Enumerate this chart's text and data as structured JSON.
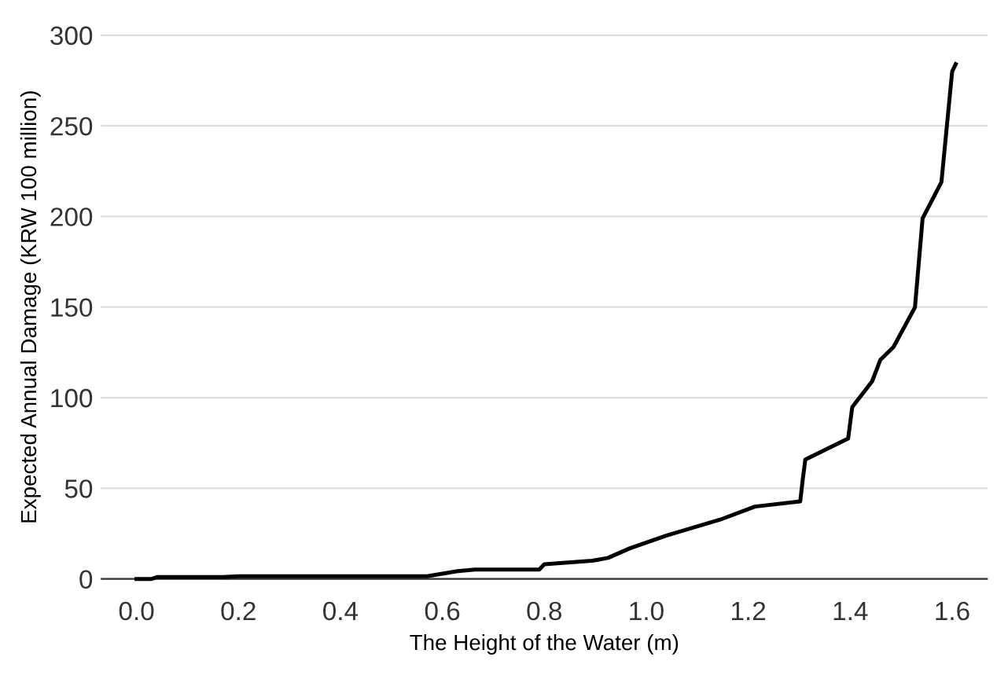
{
  "chart_data": {
    "type": "line",
    "xlabel": "The Height of the Water (m)",
    "ylabel": "Expected Annual Damage (KRW 100 million)",
    "series": [
      {
        "color": "#000000",
        "x": [
          0.0,
          0.03,
          0.04,
          0.17,
          0.2,
          0.57,
          0.6,
          0.63,
          0.664,
          0.79,
          0.8,
          0.831,
          0.894,
          0.925,
          0.967,
          1.04,
          1.145,
          1.213,
          1.302,
          1.307,
          1.312,
          1.396,
          1.404,
          1.443,
          1.459,
          1.485,
          1.527,
          1.542,
          1.579,
          1.6,
          1.607
        ],
        "values": [
          0,
          0,
          1,
          1,
          1.5,
          1.5,
          2.9,
          4.3,
          5.2,
          5.2,
          8.1,
          8.7,
          10,
          11.6,
          16.8,
          24,
          32.7,
          39.9,
          42.8,
          55,
          65.9,
          77.5,
          94.8,
          109,
          120.8,
          128,
          149.8,
          198.9,
          219,
          280,
          284
        ]
      }
    ],
    "ylim": [
      0,
      300
    ],
    "yticks": [
      0,
      50,
      100,
      150,
      200,
      250,
      300
    ],
    "xlim": [
      -0.07,
      1.67
    ],
    "xticks": [
      {
        "value": 0,
        "label": "0.0"
      },
      {
        "value": 0.2,
        "label": "0.2"
      },
      {
        "value": 0.4,
        "label": "0.4"
      },
      {
        "value": 0.6,
        "label": "0.6"
      },
      {
        "value": 0.8,
        "label": "0.8"
      },
      {
        "value": 1,
        "label": "1.0"
      },
      {
        "value": 1.2,
        "label": "1.2"
      },
      {
        "value": 1.4,
        "label": "1.4"
      },
      {
        "value": 1.6,
        "label": "1.6"
      }
    ],
    "grid": "y",
    "line_style": "solid"
  }
}
